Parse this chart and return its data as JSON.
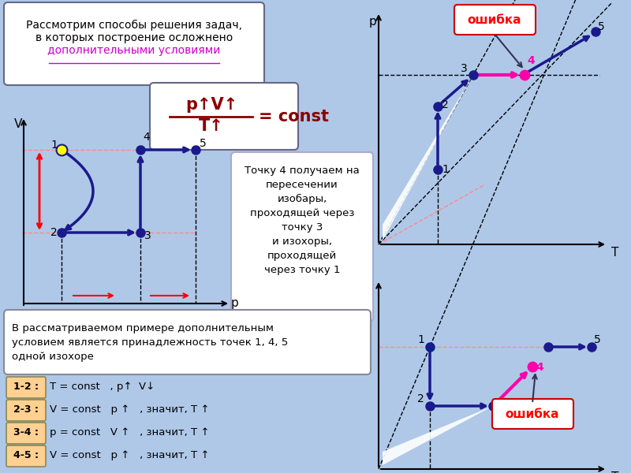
{
  "bg_color": "#afc8e8",
  "dark_blue": "#1a1a8c",
  "pink": "#ff00aa",
  "red": "#cc0000",
  "dashed_pink": "#ff8888",
  "legend_items": [
    {
      "label": "1-2 :",
      "color": "#ffd090",
      "text": "T = const   , p↑  V↓"
    },
    {
      "label": "2-3 :",
      "color": "#ffd090",
      "text": "V = const   p ↑   , значит, T ↑"
    },
    {
      "label": "3-4 :",
      "color": "#ffd090",
      "text": "p = const   V ↑   , значит, T ↑"
    },
    {
      "label": "4-5 :",
      "color": "#ffd090",
      "text": "V = const   p ↑   , значит, T ↑"
    }
  ]
}
